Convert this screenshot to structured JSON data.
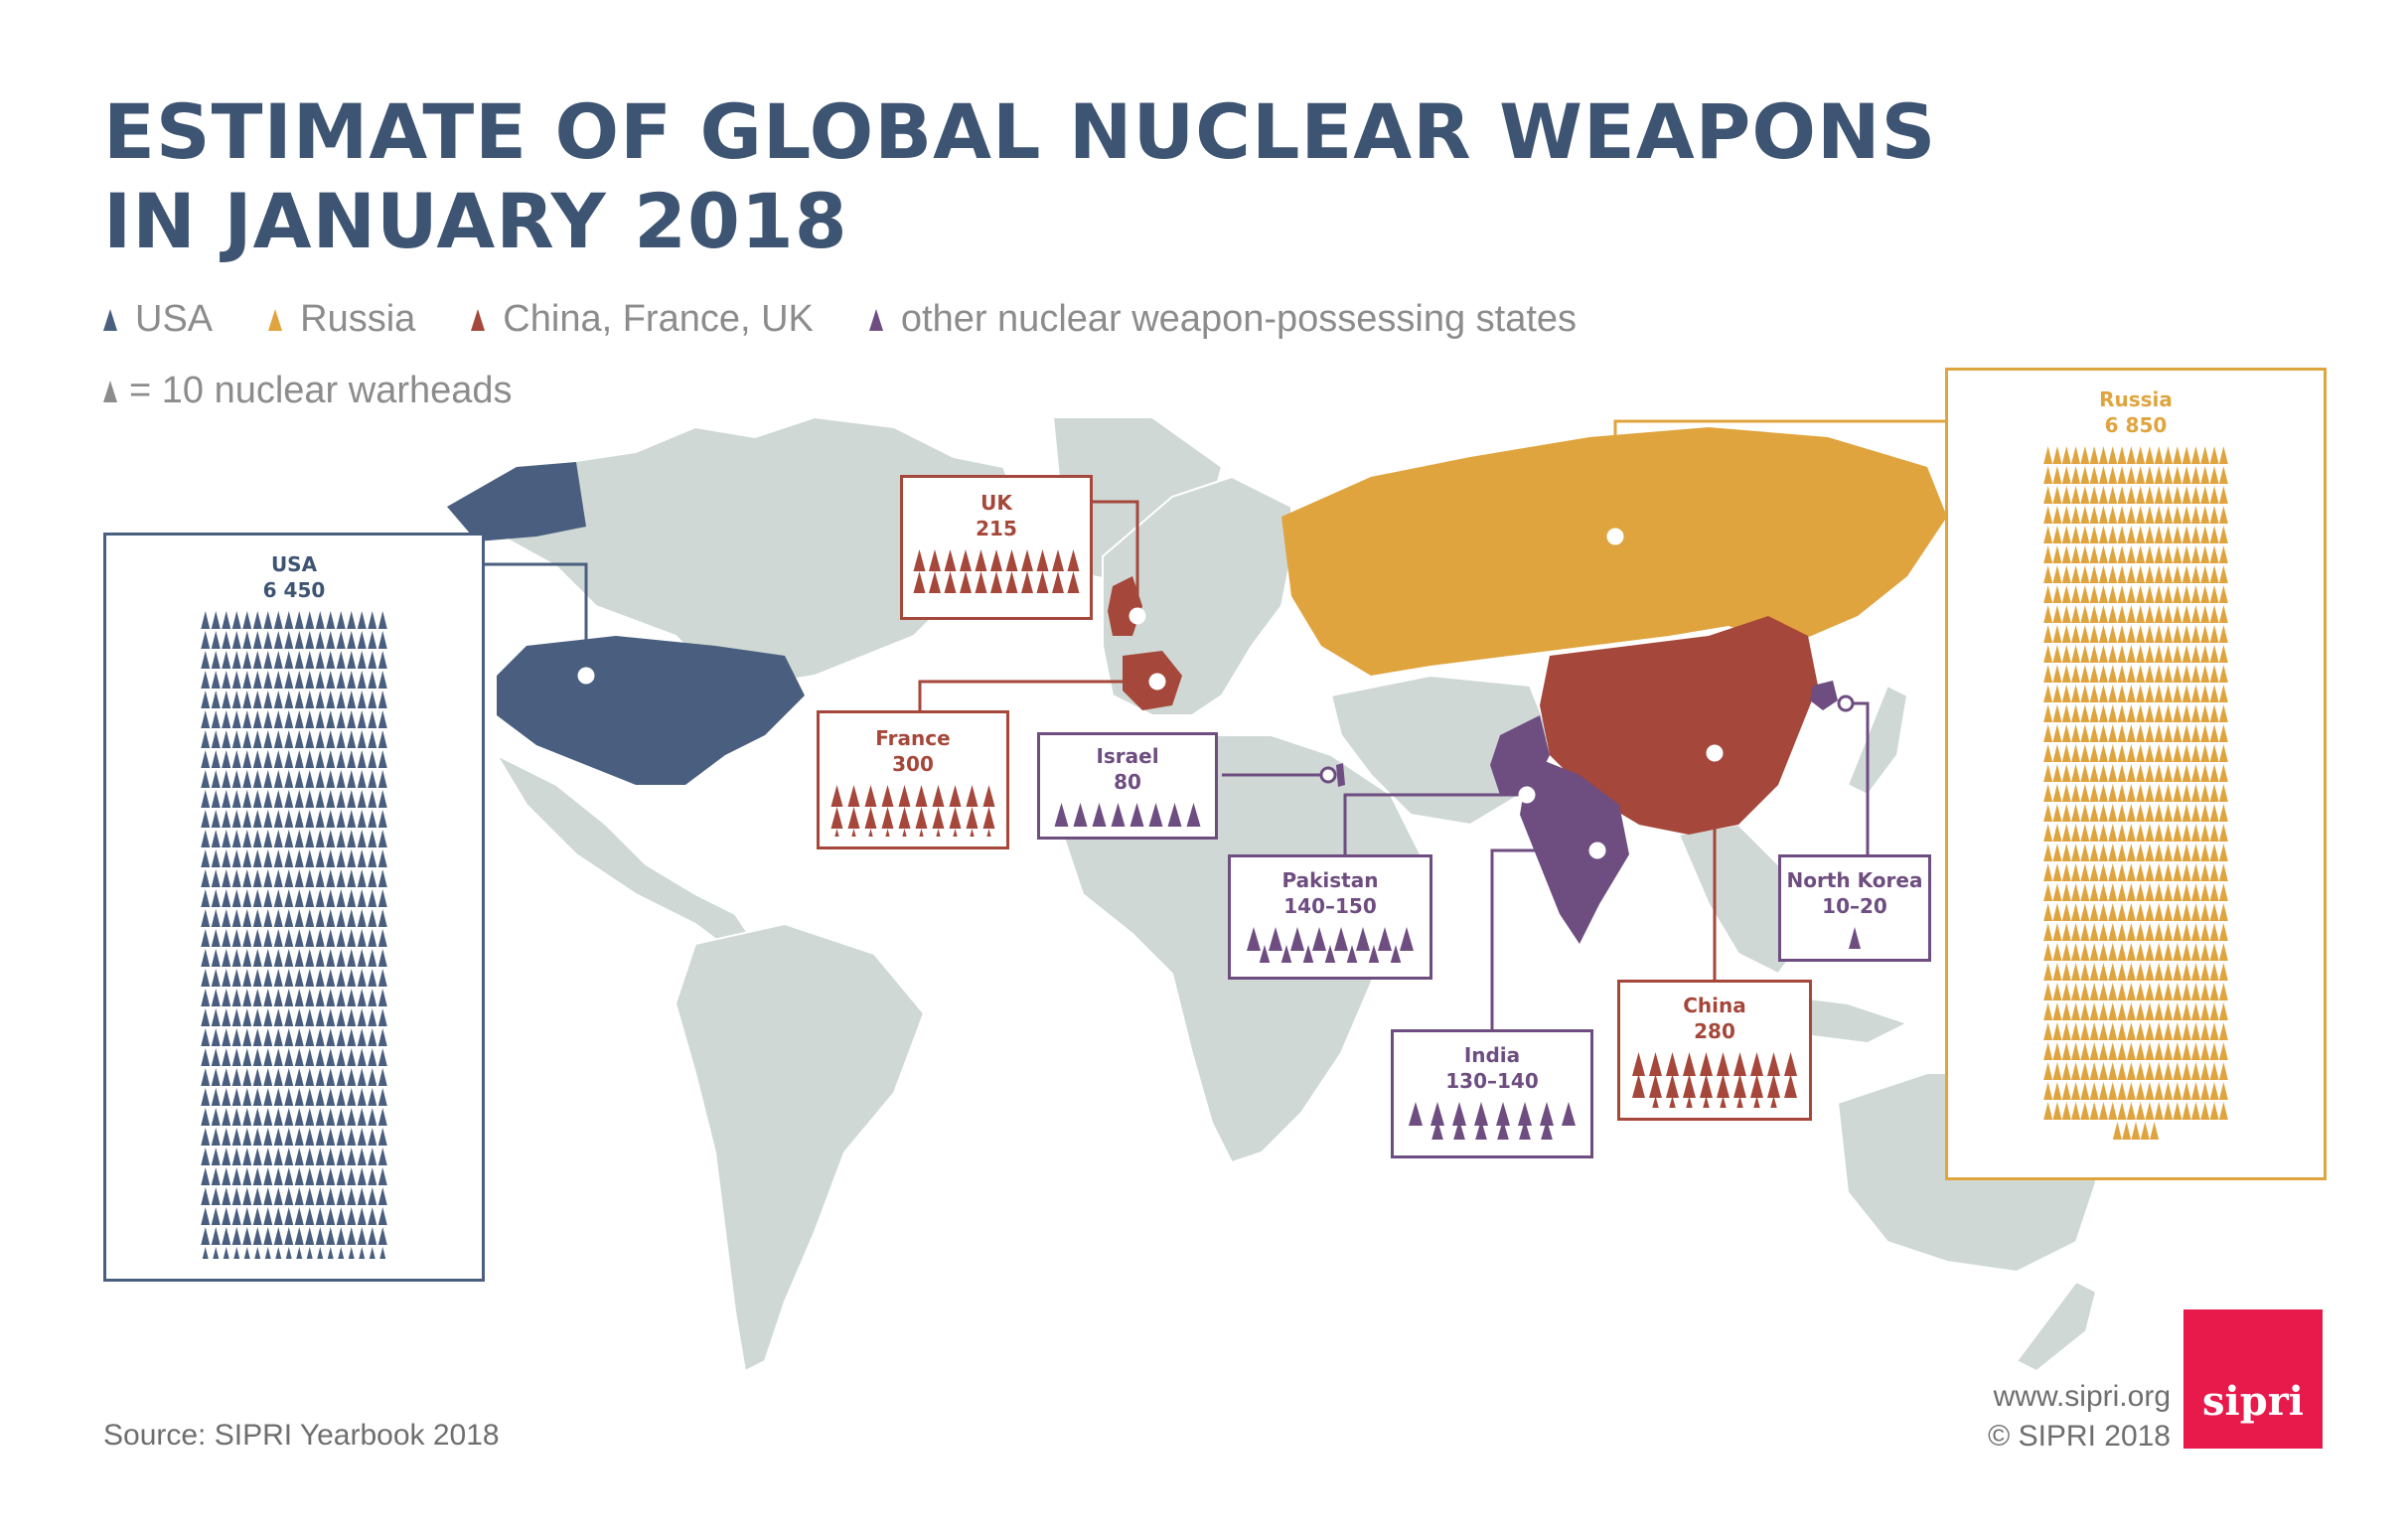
{
  "title": {
    "line1": "ESTIMATE OF GLOBAL NUCLEAR WEAPONS",
    "line2": "IN JANUARY 2018"
  },
  "legend": {
    "usa": "USA",
    "russia": "Russia",
    "cfu": "China, France, UK",
    "other": "other nuclear weapon-possessing states",
    "unit": "= 10 nuclear warheads"
  },
  "colors": {
    "usa": "#4a5f7f",
    "russia": "#e0a43e",
    "cfu": "#a5473a",
    "other": "#6e4d80",
    "land": "#cfd8d5",
    "text": "#3d5472",
    "muted": "#8c8c8c",
    "logo": "#e8194b"
  },
  "countries": {
    "usa": {
      "name": "USA",
      "value": "6 450",
      "warheads": 6450,
      "icons": 645
    },
    "russia": {
      "name": "Russia",
      "value": "6 850",
      "warheads": 6850,
      "icons": 685
    },
    "uk": {
      "name": "UK",
      "value": "215",
      "warheads": 215,
      "icons": 22
    },
    "france": {
      "name": "France",
      "value": "300",
      "warheads": 300,
      "icons": 30
    },
    "israel": {
      "name": "Israel",
      "value": "80",
      "warheads": 80,
      "icons": 8
    },
    "pakistan": {
      "name": "Pakistan",
      "value": "140–150",
      "warheads": 145,
      "icons": 15
    },
    "north_korea": {
      "name": "North Korea",
      "value": "10–20",
      "warheads": 15,
      "icons": 1
    },
    "china": {
      "name": "China",
      "value": "280",
      "warheads": 280,
      "icons": 28
    },
    "india": {
      "name": "India",
      "value": "130–140",
      "warheads": 135,
      "icons": 14
    }
  },
  "source": "Source: SIPRI Yearbook 2018",
  "website": "www.sipri.org",
  "copyright": "© SIPRI 2018",
  "logo": "sipri"
}
